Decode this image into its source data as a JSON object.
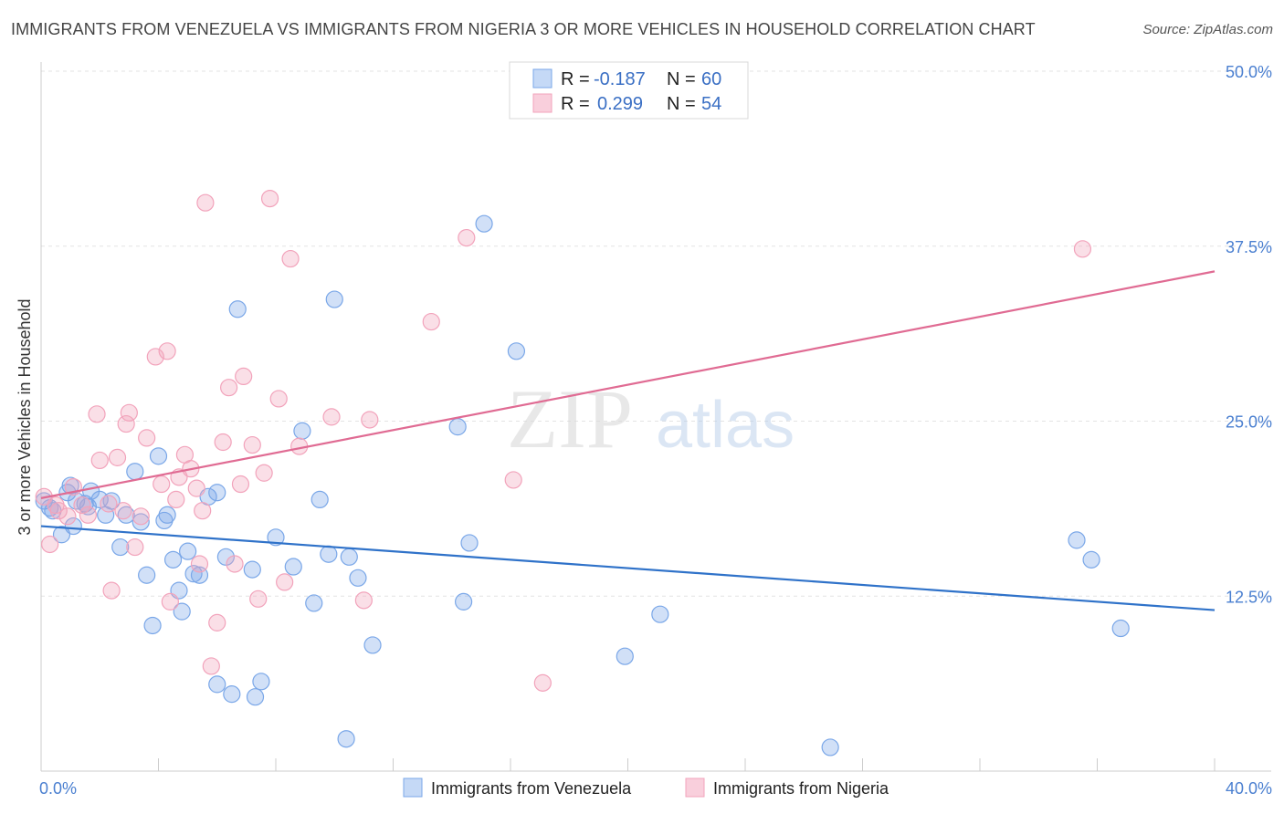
{
  "title": "IMMIGRANTS FROM VENEZUELA VS IMMIGRANTS FROM NIGERIA 3 OR MORE VEHICLES IN HOUSEHOLD CORRELATION CHART",
  "source": "Source: ZipAtlas.com",
  "watermark": {
    "zip": "ZIP",
    "atlas": "atlas"
  },
  "chart_data": {
    "type": "scatter",
    "title": "IMMIGRANTS FROM VENEZUELA VS IMMIGRANTS FROM NIGERIA 3 OR MORE VEHICLES IN HOUSEHOLD CORRELATION CHART",
    "xlabel": "",
    "ylabel": "3 or more Vehicles in Household",
    "xlim": [
      0,
      40
    ],
    "ylim": [
      0,
      50
    ],
    "x_tick_labels": [
      "0.0%",
      "40.0%"
    ],
    "y_ticks": [
      12.5,
      25.0,
      37.5,
      50.0
    ],
    "y_tick_labels": [
      "12.5%",
      "25.0%",
      "37.5%",
      "50.0%"
    ],
    "grid": true,
    "legend_position": "top-center",
    "stats": [
      {
        "r_label": "R =",
        "r_value": "-0.187",
        "n_label": "N =",
        "n_value": "60"
      },
      {
        "r_label": "R =",
        "r_value": "0.299",
        "n_label": "N =",
        "n_value": "54"
      }
    ],
    "series": [
      {
        "name": "Immigrants from Venezuela",
        "color": "#7aa7e8",
        "line_color": "#2f72c9",
        "trend": [
          [
            0,
            17.5
          ],
          [
            40,
            11.5
          ]
        ],
        "points": [
          [
            0.1,
            19.3
          ],
          [
            0.4,
            18.6
          ],
          [
            0.7,
            16.9
          ],
          [
            0.9,
            19.9
          ],
          [
            1.0,
            20.4
          ],
          [
            1.1,
            17.5
          ],
          [
            1.2,
            19.3
          ],
          [
            1.5,
            19.1
          ],
          [
            1.6,
            18.9
          ],
          [
            1.7,
            20.0
          ],
          [
            2.2,
            18.3
          ],
          [
            2.4,
            19.3
          ],
          [
            2.7,
            16.0
          ],
          [
            2.9,
            18.3
          ],
          [
            3.2,
            21.4
          ],
          [
            3.4,
            17.8
          ],
          [
            3.6,
            14.0
          ],
          [
            3.8,
            10.4
          ],
          [
            4.0,
            22.5
          ],
          [
            4.2,
            17.9
          ],
          [
            4.3,
            18.3
          ],
          [
            4.5,
            15.1
          ],
          [
            4.7,
            12.9
          ],
          [
            4.8,
            11.4
          ],
          [
            5.0,
            15.7
          ],
          [
            5.2,
            14.1
          ],
          [
            5.4,
            14.0
          ],
          [
            5.7,
            19.6
          ],
          [
            6.0,
            19.9
          ],
          [
            6.0,
            6.2
          ],
          [
            6.3,
            15.3
          ],
          [
            6.5,
            5.5
          ],
          [
            6.7,
            33.0
          ],
          [
            7.2,
            14.4
          ],
          [
            7.3,
            5.3
          ],
          [
            7.5,
            6.4
          ],
          [
            8.0,
            16.7
          ],
          [
            8.6,
            14.6
          ],
          [
            8.9,
            24.3
          ],
          [
            9.3,
            12.0
          ],
          [
            9.5,
            19.4
          ],
          [
            9.8,
            15.5
          ],
          [
            10.0,
            33.7
          ],
          [
            10.4,
            2.3
          ],
          [
            10.5,
            15.3
          ],
          [
            10.8,
            13.8
          ],
          [
            11.3,
            9.0
          ],
          [
            14.2,
            24.6
          ],
          [
            14.4,
            12.1
          ],
          [
            14.6,
            16.3
          ],
          [
            15.1,
            39.1
          ],
          [
            16.2,
            30.0
          ],
          [
            19.9,
            8.2
          ],
          [
            21.1,
            11.2
          ],
          [
            26.9,
            1.7
          ],
          [
            35.3,
            16.5
          ],
          [
            35.8,
            15.1
          ],
          [
            36.8,
            10.2
          ],
          [
            0.3,
            18.8
          ],
          [
            2.0,
            19.4
          ]
        ]
      },
      {
        "name": "Immigrants from Nigeria",
        "color": "#f2a3bb",
        "line_color": "#e06b93",
        "trend": [
          [
            0,
            19.5
          ],
          [
            40,
            35.7
          ]
        ],
        "points": [
          [
            0.1,
            19.6
          ],
          [
            0.3,
            16.2
          ],
          [
            0.6,
            18.6
          ],
          [
            0.9,
            18.2
          ],
          [
            1.1,
            20.3
          ],
          [
            1.4,
            19.0
          ],
          [
            1.6,
            18.3
          ],
          [
            1.9,
            25.5
          ],
          [
            2.0,
            22.2
          ],
          [
            2.3,
            19.1
          ],
          [
            2.4,
            12.9
          ],
          [
            2.6,
            22.4
          ],
          [
            2.8,
            18.6
          ],
          [
            2.9,
            24.8
          ],
          [
            3.0,
            25.6
          ],
          [
            3.2,
            16.0
          ],
          [
            3.4,
            18.2
          ],
          [
            3.6,
            23.8
          ],
          [
            3.9,
            29.6
          ],
          [
            4.1,
            20.5
          ],
          [
            4.3,
            30.0
          ],
          [
            4.4,
            12.1
          ],
          [
            4.6,
            19.4
          ],
          [
            4.7,
            21.0
          ],
          [
            4.9,
            22.6
          ],
          [
            5.1,
            21.6
          ],
          [
            5.3,
            20.2
          ],
          [
            5.4,
            14.8
          ],
          [
            5.5,
            18.6
          ],
          [
            5.6,
            40.6
          ],
          [
            5.8,
            7.5
          ],
          [
            6.0,
            10.6
          ],
          [
            6.2,
            23.5
          ],
          [
            6.4,
            27.4
          ],
          [
            6.6,
            14.8
          ],
          [
            6.8,
            20.5
          ],
          [
            6.9,
            28.2
          ],
          [
            7.2,
            23.3
          ],
          [
            7.4,
            12.3
          ],
          [
            7.6,
            21.3
          ],
          [
            7.8,
            40.9
          ],
          [
            8.1,
            26.6
          ],
          [
            8.3,
            13.5
          ],
          [
            8.5,
            36.6
          ],
          [
            8.8,
            23.2
          ],
          [
            9.9,
            25.3
          ],
          [
            11.0,
            12.2
          ],
          [
            11.2,
            25.1
          ],
          [
            13.3,
            32.1
          ],
          [
            14.5,
            38.1
          ],
          [
            16.1,
            20.8
          ],
          [
            17.1,
            6.3
          ],
          [
            35.5,
            37.3
          ],
          [
            0.5,
            19.0
          ]
        ]
      }
    ]
  }
}
